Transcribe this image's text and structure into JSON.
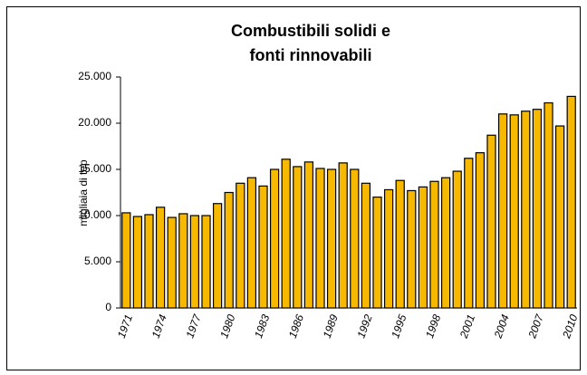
{
  "chart_data": {
    "type": "bar",
    "title": [
      "Combustibili solidi e",
      "fonti rinnovabili"
    ],
    "y_axis_label": "migliaia di tep",
    "categories": [
      "1971",
      null,
      null,
      "1974",
      null,
      null,
      "1977",
      null,
      null,
      "1980",
      null,
      null,
      "1983",
      null,
      null,
      "1986",
      null,
      null,
      "1989",
      null,
      null,
      "1992",
      null,
      null,
      "1995",
      null,
      null,
      "1998",
      null,
      null,
      "2001",
      null,
      null,
      "2004",
      null,
      null,
      "2007",
      null,
      null,
      "2010"
    ],
    "values": [
      10300,
      9900,
      10100,
      10900,
      9800,
      10200,
      10000,
      10000,
      11300,
      12500,
      13500,
      14100,
      13200,
      15000,
      16100,
      15300,
      15800,
      15100,
      15000,
      15700,
      15000,
      13500,
      12000,
      12800,
      13800,
      12700,
      13100,
      13700,
      14100,
      14800,
      16200,
      16800,
      18700,
      21000,
      20900,
      21300,
      21500,
      22200,
      19700,
      22900
    ],
    "color": "#f7b900",
    "ylim": [
      0,
      25000
    ],
    "yticks": [
      0,
      {
        "value": 5000,
        "label": "5.000"
      },
      {
        "value": 10000,
        "label": "10.000"
      },
      {
        "value": 15000,
        "label": "15.000"
      },
      {
        "value": 20000,
        "label": "20.000"
      },
      {
        "value": 25000,
        "label": "25.000"
      }
    ],
    "grid": false
  }
}
